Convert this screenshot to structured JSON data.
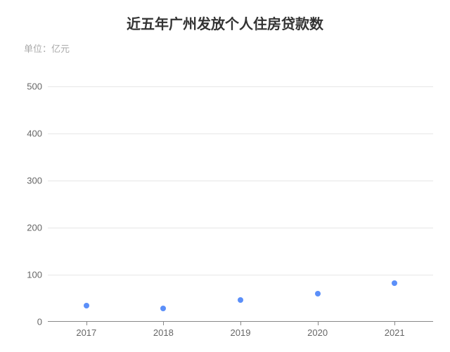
{
  "chart": {
    "type": "scatter",
    "title": "近五年广州发放个人住房贷款数",
    "subtitle": "单位：亿元",
    "title_fontsize": 20,
    "title_color": "#333333",
    "subtitle_fontsize": 13,
    "subtitle_color": "#aaaaaa",
    "background_color": "#ffffff",
    "x_categories": [
      "2017",
      "2018",
      "2019",
      "2020",
      "2021"
    ],
    "y_values": [
      35,
      28,
      47,
      60,
      82
    ],
    "ylim": [
      0,
      550
    ],
    "yticks": [
      0,
      100,
      200,
      300,
      400,
      500
    ],
    "point_color": "#5b8ff9",
    "point_radius": 4,
    "grid_color": "#e6e6e6",
    "axis_color": "#888888",
    "tick_label_fontsize": 13,
    "tick_label_color": "#666666"
  }
}
